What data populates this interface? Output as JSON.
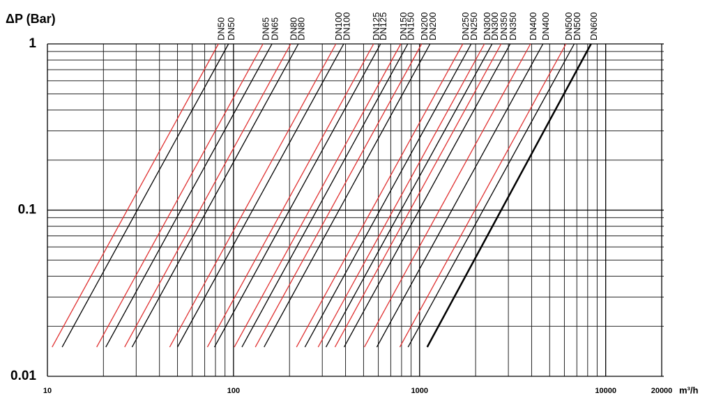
{
  "chart_data": {
    "type": "line",
    "y_label": "ΔP (Bar)",
    "x_label": "m³/h",
    "log_x": true,
    "log_y": true,
    "grid": true,
    "xlim": [
      10,
      20000
    ],
    "ylim": [
      0.01,
      1
    ],
    "xticks": [
      10,
      100,
      1000,
      10000,
      20000
    ],
    "yticks": [
      0.01,
      0.1,
      1
    ],
    "x_minor_grid": [
      20,
      30,
      40,
      50,
      60,
      70,
      80,
      90,
      200,
      300,
      400,
      500,
      600,
      700,
      800,
      900,
      2000,
      3000,
      4000,
      5000,
      6000,
      7000,
      8000,
      9000
    ],
    "y_minor_grid": [
      0.02,
      0.03,
      0.04,
      0.05,
      0.06,
      0.07,
      0.08,
      0.09,
      0.2,
      0.3,
      0.4,
      0.5,
      0.6,
      0.7,
      0.8,
      0.9
    ],
    "series": [
      {
        "name": "DN50",
        "color": "#e03030",
        "x": [
          10.6,
          83
        ],
        "values": [
          0.015,
          1
        ]
      },
      {
        "name": "DN50",
        "color": "#000000",
        "x": [
          12,
          94
        ],
        "values": [
          0.015,
          1
        ]
      },
      {
        "name": "DN65",
        "color": "#e03030",
        "x": [
          18.4,
          144
        ],
        "values": [
          0.015,
          1
        ]
      },
      {
        "name": "DN65",
        "color": "#000000",
        "x": [
          20.6,
          161
        ],
        "values": [
          0.015,
          1
        ]
      },
      {
        "name": "DN80",
        "color": "#e03030",
        "x": [
          26,
          203
        ],
        "values": [
          0.015,
          1
        ]
      },
      {
        "name": "DN80",
        "color": "#000000",
        "x": [
          28.5,
          223
        ],
        "values": [
          0.015,
          1
        ]
      },
      {
        "name": "DN100",
        "color": "#e03030",
        "x": [
          45.4,
          355
        ],
        "values": [
          0.015,
          1
        ]
      },
      {
        "name": "DN100",
        "color": "#000000",
        "x": [
          50,
          391
        ],
        "values": [
          0.015,
          1
        ]
      },
      {
        "name": "DN125",
        "color": "#e03030",
        "x": [
          72.4,
          566
        ],
        "values": [
          0.015,
          1
        ]
      },
      {
        "name": "DN125",
        "color": "#000000",
        "x": [
          79,
          617
        ],
        "values": [
          0.015,
          1
        ]
      },
      {
        "name": "DN150",
        "color": "#e03030",
        "x": [
          101,
          792
        ],
        "values": [
          0.015,
          1
        ]
      },
      {
        "name": "DN150",
        "color": "#000000",
        "x": [
          111,
          864
        ],
        "values": [
          0.015,
          1
        ]
      },
      {
        "name": "DN200",
        "color": "#e03030",
        "x": [
          131,
          1026
        ],
        "values": [
          0.015,
          1
        ]
      },
      {
        "name": "DN200",
        "color": "#000000",
        "x": [
          146,
          1138
        ],
        "values": [
          0.015,
          1
        ]
      },
      {
        "name": "DN250",
        "color": "#e03030",
        "x": [
          218,
          1707
        ],
        "values": [
          0.015,
          1
        ]
      },
      {
        "name": "DN250",
        "color": "#000000",
        "x": [
          242,
          1893
        ],
        "values": [
          0.015,
          1
        ]
      },
      {
        "name": "DN300",
        "color": "#e03030",
        "x": [
          285,
          2230
        ],
        "values": [
          0.015,
          1
        ]
      },
      {
        "name": "DN300",
        "color": "#000000",
        "x": [
          314,
          2453
        ],
        "values": [
          0.015,
          1
        ]
      },
      {
        "name": "DN350",
        "color": "#e03030",
        "x": [
          351,
          2743
        ],
        "values": [
          0.015,
          1
        ]
      },
      {
        "name": "DN350",
        "color": "#000000",
        "x": [
          393,
          3069
        ],
        "values": [
          0.015,
          1
        ]
      },
      {
        "name": "DN400",
        "color": "#e03030",
        "x": [
          505,
          3943
        ],
        "values": [
          0.015,
          1
        ]
      },
      {
        "name": "DN400",
        "color": "#000000",
        "x": [
          589,
          4603
        ],
        "values": [
          0.015,
          1
        ]
      },
      {
        "name": "DN500",
        "color": "#e03030",
        "x": [
          783,
          6118
        ],
        "values": [
          0.015,
          1
        ]
      },
      {
        "name": "DN500",
        "color": "#000000",
        "x": [
          867,
          6776
        ],
        "values": [
          0.015,
          1
        ]
      },
      {
        "name": "DN600",
        "color": "#000000",
        "x": [
          1099,
          8340
        ],
        "values": [
          0.015,
          1
        ],
        "line_width": 2.5
      }
    ]
  }
}
